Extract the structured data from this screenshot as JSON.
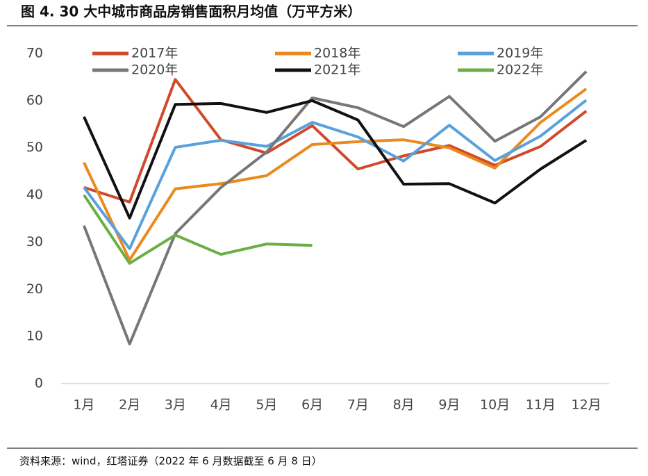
{
  "chart_data": {
    "type": "line",
    "title": "图 4. 30 大中城市商品房销售面积月均值（万平方米）",
    "source": "资料来源：wind，红塔证券（2022 年 6 月数据截至 6 月 8 日）",
    "categories": [
      "1月",
      "2月",
      "3月",
      "4月",
      "5月",
      "6月",
      "7月",
      "8月",
      "9月",
      "10月",
      "11月",
      "12月"
    ],
    "ylim": [
      0,
      70
    ],
    "yticks": [
      0,
      10,
      20,
      30,
      40,
      50,
      60,
      70
    ],
    "grid": false,
    "series": [
      {
        "name": "2017年",
        "color": "#d04a2a",
        "values": [
          41.6,
          38.5,
          64.5,
          51.7,
          48.9,
          54.7,
          45.5,
          48.3,
          50.5,
          46.3,
          50.3,
          57.8
        ]
      },
      {
        "name": "2018年",
        "color": "#ea8a1e",
        "values": [
          46.9,
          26.2,
          41.3,
          42.4,
          44.1,
          50.7,
          51.3,
          51.7,
          50.0,
          45.7,
          55.4,
          62.5
        ]
      },
      {
        "name": "2019年",
        "color": "#5aa1dc",
        "values": [
          41.6,
          28.6,
          50.1,
          51.6,
          50.3,
          55.4,
          52.3,
          47.2,
          54.8,
          47.3,
          52.5,
          60.1
        ]
      },
      {
        "name": "2020年",
        "color": "#777777",
        "values": [
          33.5,
          8.4,
          31.8,
          41.6,
          49.1,
          60.6,
          58.5,
          54.5,
          60.9,
          51.4,
          56.6,
          66.2
        ]
      },
      {
        "name": "2021年",
        "color": "#111111",
        "values": [
          56.6,
          35.1,
          59.2,
          59.4,
          57.5,
          60.0,
          55.9,
          42.3,
          42.4,
          38.3,
          45.5,
          51.6
        ]
      },
      {
        "name": "2022年",
        "color": "#6aaf46",
        "values": [
          40.0,
          25.5,
          31.5,
          27.4,
          29.6,
          29.3,
          null,
          null,
          null,
          null,
          null,
          null
        ]
      }
    ]
  }
}
